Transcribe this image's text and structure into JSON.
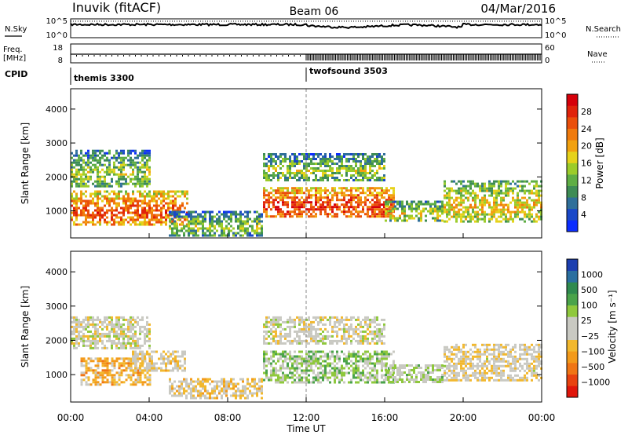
{
  "header": {
    "site": "Inuvik (fitACF)",
    "beam": "Beam 06",
    "date": "04/Mar/2016"
  },
  "strips": {
    "nsky_label": "N.Sky",
    "nsearch_label": "N.Search",
    "noise_ticks_left": [
      "10^5",
      "10^0"
    ],
    "noise_ticks_right": [
      "10^5",
      "10^0"
    ],
    "freq_label_1": "Freq.",
    "freq_label_2": "[MHz]",
    "freq_ticks": [
      "18",
      "8"
    ],
    "nave_label": "Nave",
    "nave_ticks": [
      "60",
      "0"
    ],
    "cpid_label": "CPID",
    "cpid_segments": [
      {
        "name": "themis 3300",
        "start_hour": 0
      },
      {
        "name": "twofsound 3503",
        "start_hour": 12
      }
    ]
  },
  "x_axis": {
    "label": "Time UT",
    "ticks": [
      "00:00",
      "04:00",
      "08:00",
      "12:00",
      "16:00",
      "20:00",
      "00:00"
    ],
    "range_hours": [
      0,
      24
    ]
  },
  "chart_data": [
    {
      "type": "heatmap",
      "name": "power",
      "ylabel": "Slant Range [km]",
      "y_ticks": [
        "1000",
        "2000",
        "3000",
        "4000"
      ],
      "ylim_km": [
        200,
        4600
      ],
      "colorbar": {
        "label": "Power [dB]",
        "ticks": [
          "4",
          "8",
          "12",
          "16",
          "20",
          "24",
          "28"
        ],
        "range": [
          0,
          30
        ],
        "colors": [
          "#0b2dff",
          "#1948c8",
          "#2f6f9a",
          "#3e8c55",
          "#5fae44",
          "#9ccc2a",
          "#e6d21a",
          "#f2a10f",
          "#f07a0c",
          "#ea4f0a",
          "#e0230b",
          "#d6000a"
        ]
      },
      "echo_regions": [
        {
          "t_start": 0.0,
          "t_end": 6.0,
          "range_km": [
            600,
            1600
          ],
          "level_db": 24
        },
        {
          "t_start": 0.0,
          "t_end": 4.0,
          "range_km": [
            1700,
            2800
          ],
          "level_db": 14
        },
        {
          "t_start": 5.0,
          "t_end": 9.8,
          "range_km": [
            300,
            1000
          ],
          "level_db": 14
        },
        {
          "t_start": 9.8,
          "t_end": 16.5,
          "range_km": [
            800,
            1700
          ],
          "level_db": 26
        },
        {
          "t_start": 9.8,
          "t_end": 16.0,
          "range_km": [
            1900,
            2700
          ],
          "level_db": 14
        },
        {
          "t_start": 16.0,
          "t_end": 19.0,
          "range_km": [
            700,
            1300
          ],
          "level_db": 16
        },
        {
          "t_start": 19.0,
          "t_end": 24.0,
          "range_km": [
            700,
            1900
          ],
          "level_db": 18
        }
      ]
    },
    {
      "type": "heatmap",
      "name": "velocity",
      "ylabel": "Slant Range [km]",
      "y_ticks": [
        "1000",
        "2000",
        "3000",
        "4000"
      ],
      "ylim_km": [
        200,
        4600
      ],
      "colorbar": {
        "label": "Velocity [m s⁻¹]",
        "ticks": [
          "1000",
          "500",
          "100",
          "25",
          "−25",
          "−100",
          "−500",
          "−1000"
        ],
        "range": [
          -1000,
          1000
        ],
        "colors": [
          "#1c3fb0",
          "#2a6fa0",
          "#2f8a4f",
          "#4aa34a",
          "#8fc83c",
          "#c9c9c2",
          "#c9c9c2",
          "#f2b82e",
          "#f39a1a",
          "#f07514",
          "#e8420f",
          "#e0150a"
        ]
      },
      "echo_regions": [
        {
          "t_start": 0.0,
          "t_end": 4.0,
          "range_km": [
            1800,
            2700
          ],
          "velocity": 0
        },
        {
          "t_start": 0.5,
          "t_end": 4.0,
          "range_km": [
            700,
            1500
          ],
          "velocity": -300
        },
        {
          "t_start": 3.0,
          "t_end": 5.8,
          "range_km": [
            1100,
            1700
          ],
          "velocity": -100
        },
        {
          "t_start": 5.0,
          "t_end": 9.8,
          "range_km": [
            300,
            900
          ],
          "velocity": -150
        },
        {
          "t_start": 9.8,
          "t_end": 16.5,
          "range_km": [
            800,
            1700
          ],
          "velocity": 200
        },
        {
          "t_start": 9.8,
          "t_end": 16.0,
          "range_km": [
            1900,
            2700
          ],
          "velocity": 0
        },
        {
          "t_start": 16.0,
          "t_end": 19.0,
          "range_km": [
            800,
            1300
          ],
          "velocity": 100
        },
        {
          "t_start": 19.0,
          "t_end": 24.0,
          "range_km": [
            800,
            1900
          ],
          "velocity": -80
        }
      ]
    }
  ]
}
